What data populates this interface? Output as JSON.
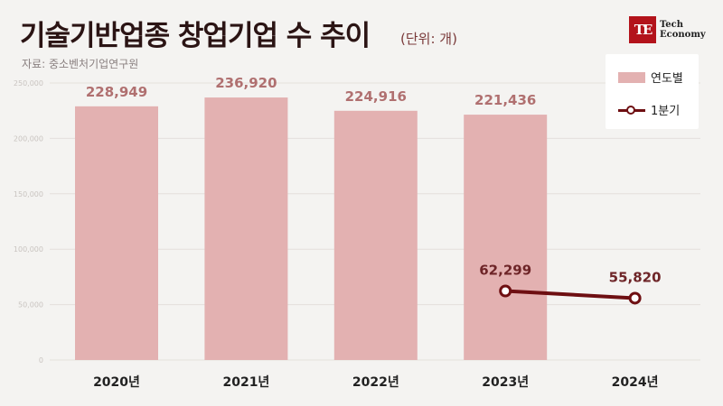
{
  "header": {
    "title": "기술기반업종 창업기업 수 추이",
    "unit": "(단위: 개)",
    "source": "자료: 중소벤처기업연구원"
  },
  "logo": {
    "mark": "TE",
    "line1": "Tech",
    "line2": "Economy"
  },
  "colors": {
    "bar": "#e3b1b1",
    "line": "#6e0f12",
    "bar_label": "#b07070",
    "line_label": "#6e2528"
  },
  "chart_data": {
    "type": "bar",
    "categories": [
      "2020년",
      "2021년",
      "2022년",
      "2023년",
      "2024년"
    ],
    "series": [
      {
        "name": "연도별",
        "type": "bar",
        "values": [
          228949,
          236920,
          224916,
          221436,
          null
        ],
        "labels": [
          "228,949",
          "236,920",
          "224,916",
          "221,436",
          ""
        ]
      },
      {
        "name": "1분기",
        "type": "line",
        "values": [
          null,
          null,
          null,
          62299,
          55820
        ],
        "labels": [
          "",
          "",
          "",
          "62,299",
          "55,820"
        ]
      }
    ],
    "yticks": [
      "0",
      "50,000",
      "100,000",
      "150,000",
      "200,000",
      "250,000"
    ],
    "ylim": [
      0,
      250000
    ],
    "legend": "top-right",
    "grid": true
  }
}
